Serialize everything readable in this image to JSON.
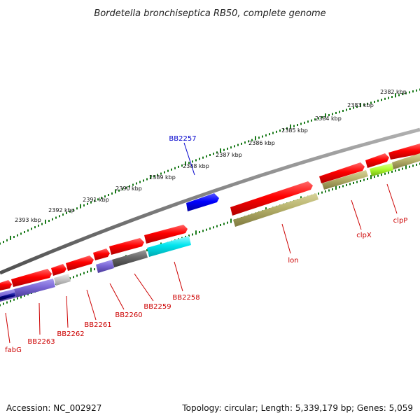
{
  "title": "Bordetella bronchiseptica RB50, complete genome",
  "accession": "Accession: NC_002927",
  "topology": "Topology: circular; Length: 5,339,179 bp; Genes: 5,059",
  "scale_labels": [
    "2382 kbp",
    "2383 kbp",
    "2384 kbp",
    "2385 kbp",
    "2386 kbp",
    "2387 kbp",
    "2388 kbp",
    "2389 kbp",
    "2390 kbp",
    "2391 kbp",
    "2392 kbp",
    "2393 kbp"
  ],
  "gene_labels": {
    "BB2257": "BB2257",
    "BB2258": "BB2258",
    "BB2259": "BB2259",
    "BB2260": "BB2260",
    "BB2261": "BB2261",
    "BB2262": "BB2262",
    "BB2263": "BB2263",
    "fabG": "fabG",
    "lon": "lon",
    "clpX": "clpX",
    "clpP": "clpP"
  },
  "colors": {
    "forward_cds": "#ff0000",
    "reverse_blue": "#0000ff",
    "label_red": "#cc0000",
    "label_blue": "#0000cc",
    "backbone": "#808080",
    "tick": "#1a7a1a",
    "olive": "#b5b06a",
    "cyan": "#00e5ee",
    "violet": "#7b68d6",
    "dark_grey": "#666666",
    "light_grey": "#c8c8c8",
    "navy": "#000080",
    "lime": "#b0ff30"
  }
}
